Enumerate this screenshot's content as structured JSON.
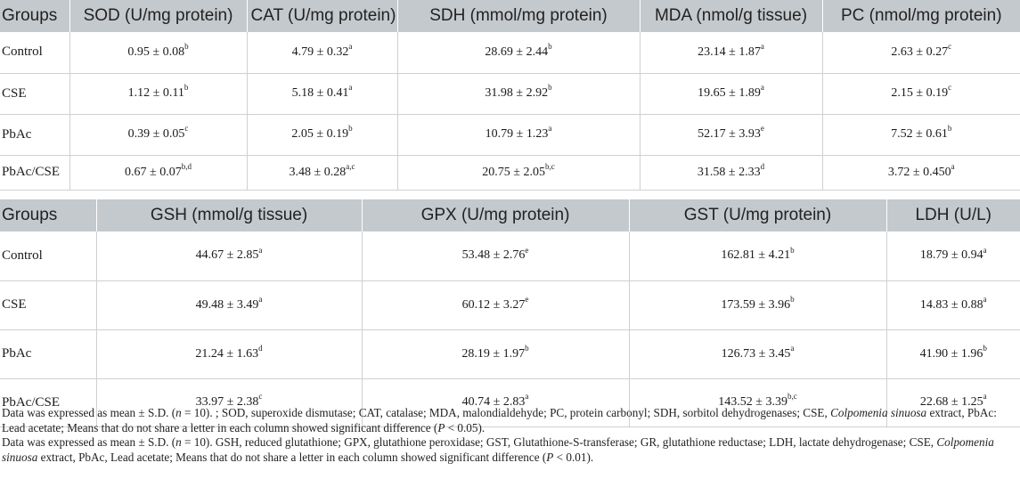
{
  "table1": {
    "headers": [
      "Groups",
      "SOD (U/mg protein)",
      "CAT (U/mg protein)",
      "SDH (mmol/mg protein)",
      "MDA (nmol/g tissue)",
      "PC (nmol/mg protein)"
    ],
    "rows": [
      {
        "group": "Control",
        "cells": [
          {
            "v": "0.95 ± 0.08",
            "s": "b"
          },
          {
            "v": "4.79 ± 0.32",
            "s": "a"
          },
          {
            "v": "28.69 ± 2.44",
            "s": "b"
          },
          {
            "v": "23.14 ± 1.87",
            "s": "a"
          },
          {
            "v": "2.63 ± 0.27",
            "s": "c"
          }
        ]
      },
      {
        "group": "CSE",
        "cells": [
          {
            "v": "1.12 ± 0.11",
            "s": "b"
          },
          {
            "v": "5.18 ± 0.41",
            "s": "a"
          },
          {
            "v": "31.98 ± 2.92",
            "s": "b"
          },
          {
            "v": "19.65 ± 1.89",
            "s": "a"
          },
          {
            "v": "2.15 ± 0.19",
            "s": "c"
          }
        ]
      },
      {
        "group": "PbAc",
        "cells": [
          {
            "v": "0.39 ± 0.05",
            "s": "c"
          },
          {
            "v": "2.05 ± 0.19",
            "s": "b"
          },
          {
            "v": "10.79 ± 1.23",
            "s": "a"
          },
          {
            "v": "52.17 ± 3.93",
            "s": "e"
          },
          {
            "v": "7.52 ± 0.61",
            "s": "b"
          }
        ]
      },
      {
        "group": "PbAc/CSE",
        "cells": [
          {
            "v": "0.67 ± 0.07",
            "s": "b,d"
          },
          {
            "v": "3.48 ± 0.28",
            "s": "a,c"
          },
          {
            "v": "20.75 ± 2.05",
            "s": "b,c"
          },
          {
            "v": "31.58 ± 2.33",
            "s": "d"
          },
          {
            "v": "3.72 ± 0.450",
            "s": "a"
          }
        ]
      }
    ]
  },
  "table2": {
    "headers": [
      "Groups",
      "GSH (mmol/g tissue)",
      "GPX (U/mg protein)",
      "GST (U/mg protein)",
      "LDH (U/L)"
    ],
    "rows": [
      {
        "group": "Control",
        "cells": [
          {
            "v": "44.67 ± 2.85",
            "s": "a"
          },
          {
            "v": "53.48 ± 2.76",
            "s": "e"
          },
          {
            "v": "162.81 ± 4.21",
            "s": "b"
          },
          {
            "v": "18.79 ± 0.94",
            "s": "a"
          }
        ]
      },
      {
        "group": "CSE",
        "cells": [
          {
            "v": "49.48 ± 3.49",
            "s": "a"
          },
          {
            "v": "60.12 ± 3.27",
            "s": "e"
          },
          {
            "v": "173.59 ± 3.96",
            "s": "b"
          },
          {
            "v": "14.83 ± 0.88",
            "s": "a"
          }
        ]
      },
      {
        "group": "PbAc",
        "cells": [
          {
            "v": "21.24 ± 1.63",
            "s": "d"
          },
          {
            "v": "28.19 ± 1.97",
            "s": "b"
          },
          {
            "v": "126.73 ± 3.45",
            "s": "a"
          },
          {
            "v": "41.90 ± 1.96",
            "s": "b"
          }
        ]
      },
      {
        "group": "PbAc/CSE",
        "cells": [
          {
            "v": "33.97 ± 2.38",
            "s": "c"
          },
          {
            "v": "40.74 ± 2.83",
            "s": "a"
          },
          {
            "v": "143.52 ± 3.39",
            "s": "b,c"
          },
          {
            "v": "22.68 ± 1.25",
            "s": "a"
          }
        ]
      }
    ]
  },
  "notes": {
    "note1": {
      "a": "Data was expressed as mean ± S.D. (",
      "n": "n",
      "b": " = 10). ; SOD, superoxide dismutase; CAT, catalase; MDA, malondialdehyde; PC, protein carbonyl; SDH, sorbitol dehydrogenases; CSE, ",
      "species": "Colpomenia sinuosa",
      "c": " extract, PbAc: Lead acetate; Means that do not share a letter in each column showed significant difference (",
      "p": "P",
      "d": " < 0.05)."
    },
    "note2": {
      "a": "Data was expressed as mean ± S.D. (",
      "n": "n",
      "b": " = 10). GSH, reduced glutathione; GPX, glutathione peroxidase; GST, Glutathione-S-transferase; GR, glutathione reductase; LDH, lactate dehydrogenase; CSE, ",
      "species": "Colpomenia sinuosa",
      "c": " extract, PbAc, Lead acetate; Means that do not share a letter in each column showed significant difference (",
      "p": "P",
      "d": " < 0.01)."
    }
  }
}
